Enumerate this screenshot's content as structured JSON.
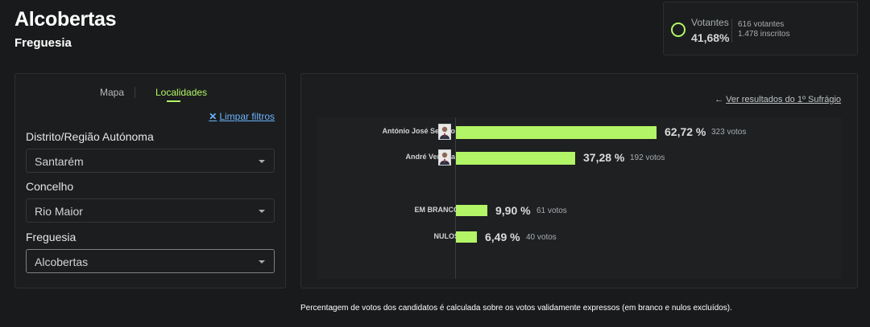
{
  "header": {
    "title": "Alcobertas",
    "subtitle": "Freguesia"
  },
  "voters": {
    "label": "Votantes",
    "percentage": "41,68%",
    "turnout_fraction": 0.4168,
    "voters_text": "616 votantes",
    "registered_text": "1.478 inscritos",
    "ring_color": "#b2f566"
  },
  "filters": {
    "tabs": [
      {
        "label": "Mapa",
        "active": false
      },
      {
        "label": "Localidades",
        "active": true
      }
    ],
    "clear_label": "Limpar filtros",
    "fields": [
      {
        "label": "Distrito/Região Autónoma",
        "value": "Santarém"
      },
      {
        "label": "Concelho",
        "value": "Rio Maior"
      },
      {
        "label": "Freguesia",
        "value": "Alcobertas"
      }
    ]
  },
  "results": {
    "first_round_link": "Ver resultados do 1º Sufrágio",
    "accent_color": "#b2f566"
  },
  "chart_data": {
    "type": "bar",
    "orientation": "horizontal",
    "rows": [
      {
        "label": "António José Seguro",
        "pct": 62.72,
        "pct_text": "62,72 %",
        "votes_text": "323 votos",
        "avatar": true
      },
      {
        "label": "André Ventura",
        "pct": 37.28,
        "pct_text": "37,28 %",
        "votes_text": "192 votos",
        "avatar": true
      },
      {
        "label": "EM BRANCO",
        "pct": 9.9,
        "pct_text": "9,90 %",
        "votes_text": "61 votos",
        "avatar": false
      },
      {
        "label": "NULOS",
        "pct": 6.49,
        "pct_text": "6,49 %",
        "votes_text": "40 votos",
        "avatar": false
      }
    ],
    "xlim": [
      0,
      100
    ],
    "grid": false
  },
  "footnote": "Percentagem de votos dos candidatos é calculada sobre os votos validamente expressos (em branco e nulos excluídos)."
}
